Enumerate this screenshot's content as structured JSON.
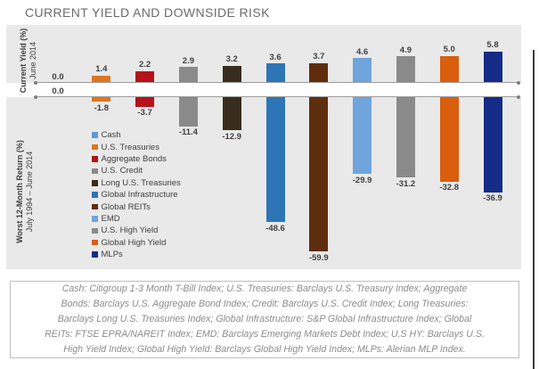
{
  "title": "CURRENT YIELD AND DOWNSIDE RISK",
  "chart_data": {
    "type": "bar",
    "title": "CURRENT YIELD AND DOWNSIDE RISK",
    "orientation": "vertical, dual mirrored panels sharing categories",
    "grid": "off",
    "legend_position": "inside lower-left of bottom panel",
    "upper_axis": {
      "title": "Current Yield (%)",
      "subtitle": "June 2014",
      "baseline": 0,
      "ylim": [
        0,
        6.5
      ]
    },
    "lower_axis": {
      "title": "Worst 12-Month Return (%)",
      "subtitle": "July 1994 – June 2014",
      "baseline": 0,
      "ylim": [
        -65,
        0
      ]
    },
    "categories": [
      "Cash",
      "U.S. Treasuries",
      "Aggregate Bonds",
      "U.S. Credit",
      "Long U.S. Treasuries",
      "Global Infrastructure",
      "Global REITs",
      "EMD",
      "U.S. High Yield",
      "Global High Yield",
      "MLPs"
    ],
    "series": [
      {
        "name": "Current Yield (%) June 2014",
        "values": [
          0.0,
          1.4,
          2.2,
          2.9,
          3.2,
          3.6,
          3.7,
          4.6,
          4.9,
          5.0,
          5.8
        ]
      },
      {
        "name": "Worst 12-Month Return (%) July 1994 - June 2014",
        "values": [
          0.0,
          -1.8,
          -3.7,
          -11.4,
          -12.9,
          -48.6,
          -59.9,
          -29.9,
          -31.2,
          -32.8,
          -36.9
        ]
      }
    ],
    "items": [
      {
        "label": "Cash",
        "color": "#5C9BD5",
        "yield": 0.0,
        "worst": 0.0
      },
      {
        "label": "U.S. Treasuries",
        "color": "#E0751E",
        "yield": 1.4,
        "worst": -1.8
      },
      {
        "label": "Aggregate Bonds",
        "color": "#B5121B",
        "yield": 2.2,
        "worst": -3.7
      },
      {
        "label": "U.S. Credit",
        "color": "#8A8A8A",
        "yield": 2.9,
        "worst": -11.4
      },
      {
        "label": "Long U.S. Treasuries",
        "color": "#3A2C1C",
        "yield": 3.2,
        "worst": -12.9
      },
      {
        "label": "Global Infrastructure",
        "color": "#2E75B6",
        "yield": 3.6,
        "worst": -48.6
      },
      {
        "label": "Global REITs",
        "color": "#5E2D0E",
        "yield": 3.7,
        "worst": -59.9
      },
      {
        "label": "EMD",
        "color": "#6FA4DC",
        "yield": 4.6,
        "worst": -29.9
      },
      {
        "label": "U.S. High Yield",
        "color": "#8A8A8A",
        "yield": 4.9,
        "worst": -31.2
      },
      {
        "label": "Global High Yield",
        "color": "#D95E0E",
        "yield": 5.0,
        "worst": -32.8
      },
      {
        "label": "MLPs",
        "color": "#142B87",
        "yield": 5.8,
        "worst": -36.9
      }
    ],
    "colors": {
      "panel_background": "#E9E9E9",
      "axis_line": "#9C9C9C",
      "value_label": "#3F3F3F",
      "title_text": "#6B6B6B",
      "footnote_text": "#8C8C8C"
    }
  },
  "footnote": {
    "text": "Cash: Citigroup 1-3 Month T-Bill Index; U.S. Treasuries: Barclays U.S. Treasury Index; Aggregate\nBonds: Barclays U.S. Aggregate Bond Index; Credit: Barclays U.S. Credit Index; Long Treasuries:\nBarclays Long U.S. Treasuries Index; Global Infrastructure: S&P Global Infrastructure Index; Global\nREITs: FTSE EPRA/NAREIT Index; EMD: Barclays Emerging Markets Debt Index; U.S HY: Barclays U.S.\nHigh Yield Index; Global High Yield: Barclays Global High Yield Index; MLPs: Alerian MLP Index."
  }
}
